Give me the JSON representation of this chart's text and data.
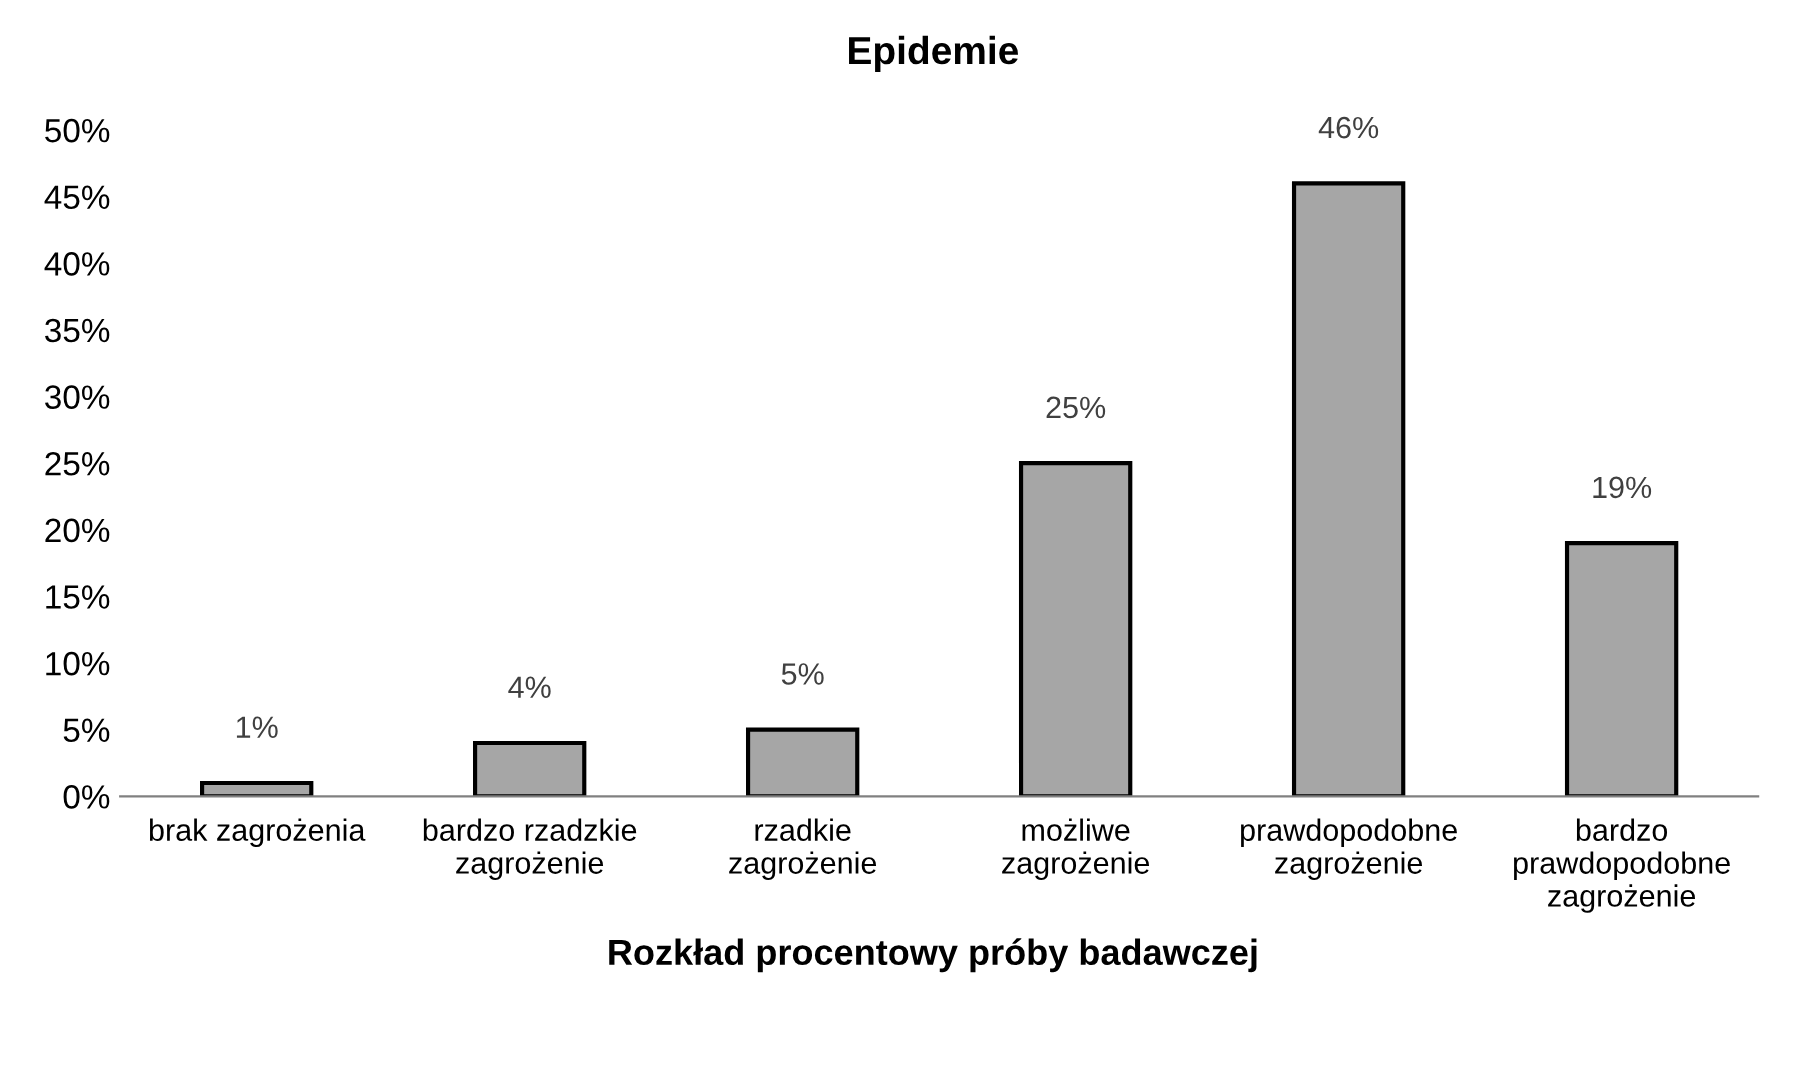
{
  "chart_data": {
    "type": "bar",
    "title": "Epidemie",
    "xlabel": "Rozkład procentowy próby badawczej",
    "categories": [
      "brak zagrożenia",
      "bardzo rzadzkie\nzagrożenie",
      "rzadkie\nzagrożenie",
      "możliwe\nzagrożenie",
      "prawdopodobne\nzagrożenie",
      "bardzo\nprawdopodobne\nzagrożenie"
    ],
    "values": [
      1,
      4,
      5,
      25,
      46,
      19
    ],
    "value_labels": [
      "1%",
      "4%",
      "5%",
      "25%",
      "46%",
      "19%"
    ],
    "color": "#a6a6a6",
    "ylim": [
      0,
      50
    ],
    "yticks": [
      {
        "value": 0,
        "label": "0%"
      },
      {
        "value": 5,
        "label": "5%"
      },
      {
        "value": 10,
        "label": "10%"
      },
      {
        "value": 15,
        "label": "15%"
      },
      {
        "value": 20,
        "label": "20%"
      },
      {
        "value": 25,
        "label": "25%"
      },
      {
        "value": 30,
        "label": "30%"
      },
      {
        "value": 35,
        "label": "35%"
      },
      {
        "value": 40,
        "label": "40%"
      },
      {
        "value": 45,
        "label": "45%"
      },
      {
        "value": 50,
        "label": "50%"
      }
    ],
    "grid": false,
    "legend": false
  }
}
